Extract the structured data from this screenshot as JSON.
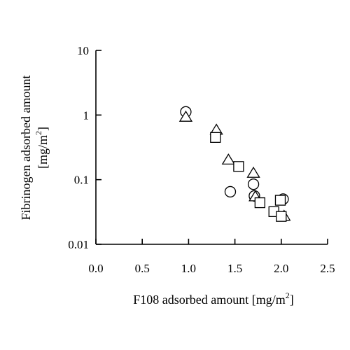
{
  "chart_data": {
    "type": "scatter",
    "xlabel": "F108 adsorbed amount [mg/m",
    "xlabel_sup": "2",
    "xlabel_end": "]",
    "ylabel_line1": "Fibrinogen adsorbed amount",
    "ylabel_line2": "[mg/m",
    "ylabel_sup": "2",
    "ylabel_end": "]",
    "xlim": [
      0.0,
      2.5
    ],
    "ylim": [
      0.01,
      10
    ],
    "yscale": "log",
    "x_ticks": [
      "0.0",
      "0.5",
      "1.0",
      "1.5",
      "2.0",
      "2.5"
    ],
    "y_ticks": [
      "0.01",
      "0.1",
      "1",
      "10"
    ],
    "grid": false,
    "series": [
      {
        "marker": "circle",
        "points": [
          {
            "x": 0.97,
            "y": 1.12
          },
          {
            "x": 1.45,
            "y": 0.065
          },
          {
            "x": 1.7,
            "y": 0.085
          },
          {
            "x": 1.71,
            "y": 0.056
          },
          {
            "x": 2.02,
            "y": 0.05
          }
        ]
      },
      {
        "marker": "triangle",
        "points": [
          {
            "x": 0.97,
            "y": 0.92
          },
          {
            "x": 1.3,
            "y": 0.58
          },
          {
            "x": 1.43,
            "y": 0.2
          },
          {
            "x": 1.7,
            "y": 0.125
          },
          {
            "x": 1.72,
            "y": 0.054
          },
          {
            "x": 2.03,
            "y": 0.027
          }
        ]
      },
      {
        "marker": "square",
        "points": [
          {
            "x": 1.29,
            "y": 0.45
          },
          {
            "x": 1.54,
            "y": 0.16
          },
          {
            "x": 1.77,
            "y": 0.044
          },
          {
            "x": 1.92,
            "y": 0.032
          },
          {
            "x": 1.99,
            "y": 0.048
          },
          {
            "x": 2.0,
            "y": 0.027
          }
        ]
      }
    ]
  }
}
